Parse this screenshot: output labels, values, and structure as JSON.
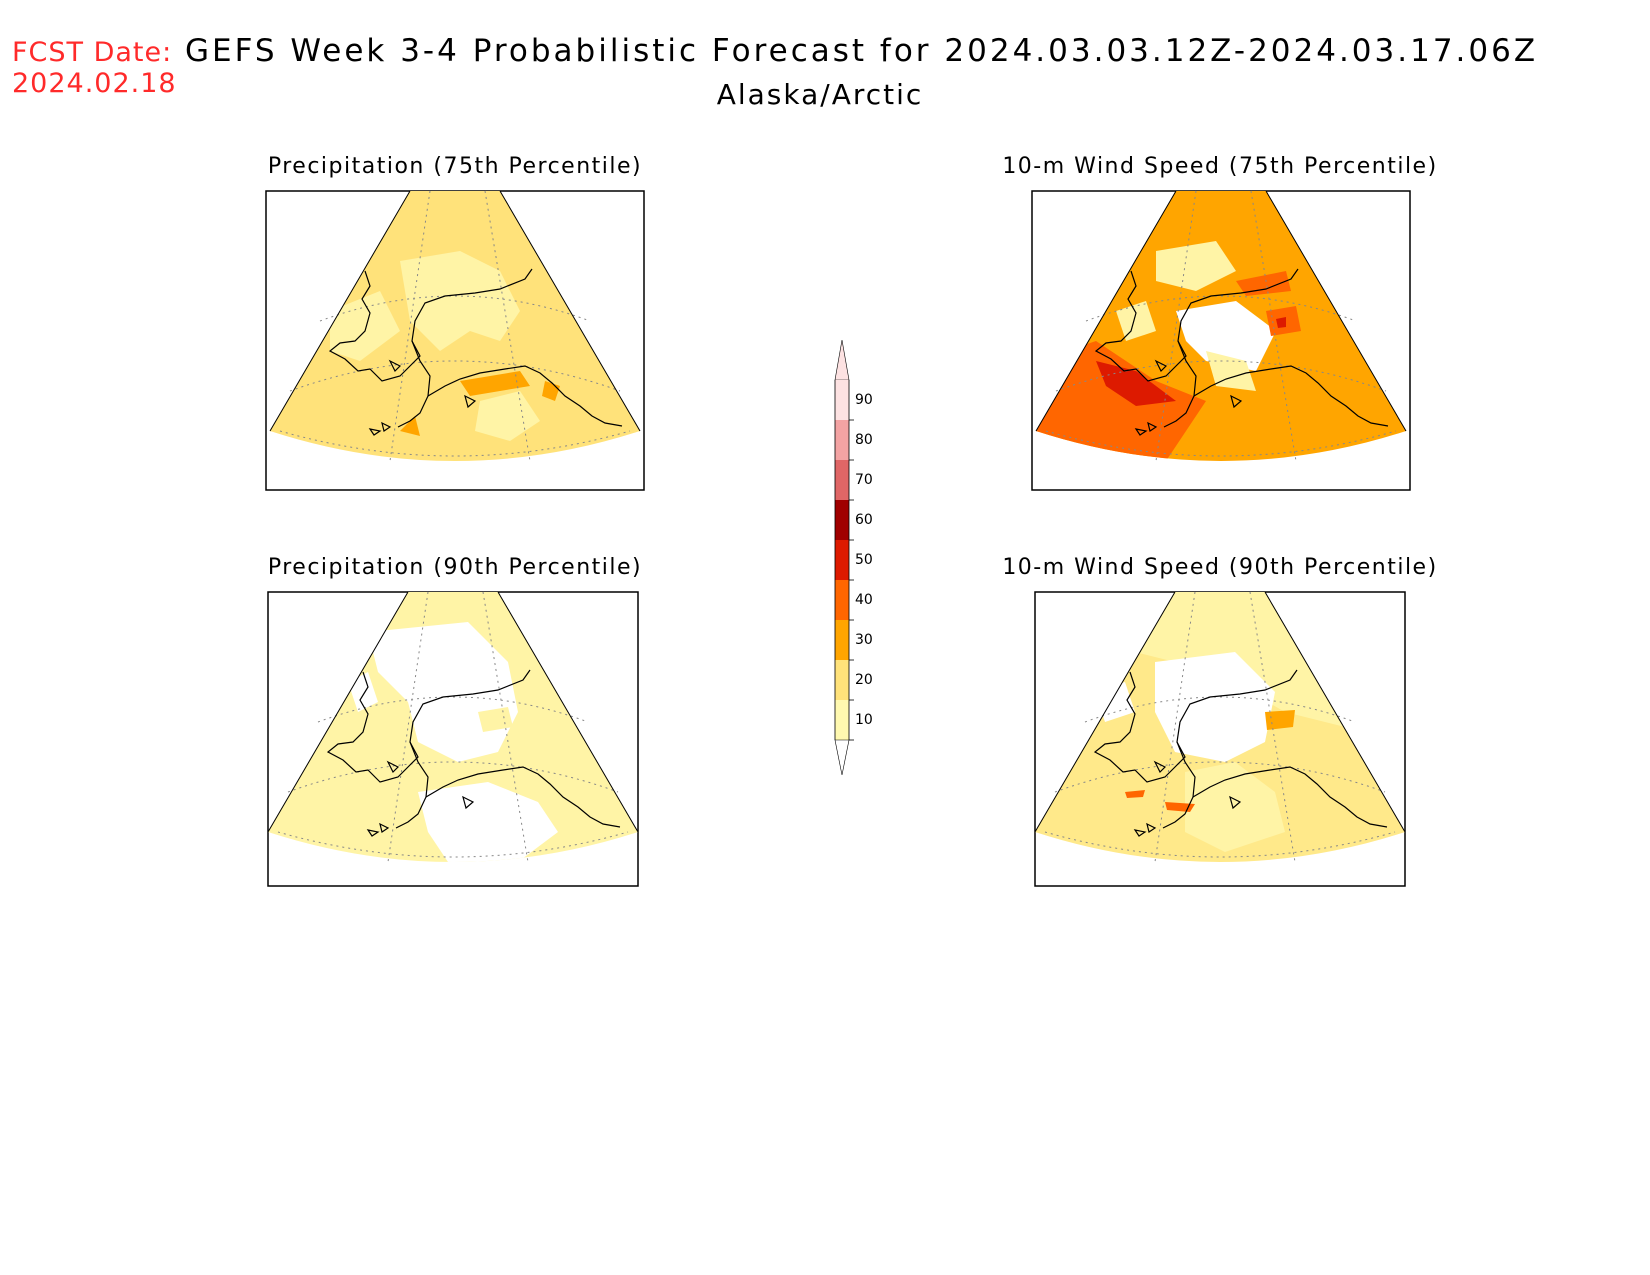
{
  "header": {
    "fcst_label": "FCST Date:",
    "fcst_date": "2024.02.18",
    "title": "GEFS Week 3-4 Probabilistic Forecast for 2024.03.03.12Z-2024.03.17.06Z",
    "region": "Alaska/Arctic"
  },
  "panels": [
    {
      "title": "Precipitation (75th Percentile)",
      "base_color": "#ffe27a"
    },
    {
      "title": "10-m Wind Speed (75th Percentile)",
      "base_color": "#ffa500"
    },
    {
      "title": "Precipitation (90th Percentile)",
      "base_color": "#fff4a6"
    },
    {
      "title": "10-m Wind Speed (90th Percentile)",
      "base_color": "#ffe98a"
    }
  ],
  "colorbar": {
    "labels": [
      "90",
      "80",
      "70",
      "60",
      "50",
      "40",
      "30",
      "20",
      "10"
    ],
    "colors": [
      "#fde2e2",
      "#f3a3a3",
      "#e06666",
      "#a00000",
      "#dd1a00",
      "#ff6600",
      "#ffa500",
      "#ffe27a",
      "#fff9b0"
    ]
  }
}
